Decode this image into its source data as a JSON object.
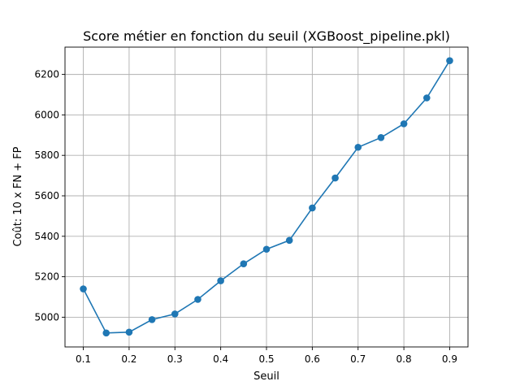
{
  "chart_data": {
    "type": "line",
    "title": "Score métier en fonction du seuil (XGBoost_pipeline.pkl)",
    "xlabel": "Seuil",
    "ylabel": "Coût: 10 x FN + FP",
    "x": [
      0.1,
      0.15,
      0.2,
      0.25,
      0.3,
      0.35,
      0.4,
      0.45,
      0.5,
      0.55,
      0.6,
      0.65,
      0.7,
      0.75,
      0.8,
      0.85,
      0.9
    ],
    "y": [
      5140,
      4922,
      4926,
      4988,
      5016,
      5088,
      5180,
      5264,
      5336,
      5380,
      5540,
      5688,
      5840,
      5888,
      5956,
      6084,
      6268
    ],
    "xticks": [
      "0.1",
      "0.2",
      "0.3",
      "0.4",
      "0.5",
      "0.6",
      "0.7",
      "0.8",
      "0.9"
    ],
    "yticks": [
      "5000",
      "5200",
      "5400",
      "5600",
      "5800",
      "6000",
      "6200"
    ],
    "xlim": [
      0.06,
      0.94
    ],
    "ylim": [
      4853,
      6335
    ],
    "grid": true,
    "marker": "circle",
    "color": "#1f77b4"
  }
}
